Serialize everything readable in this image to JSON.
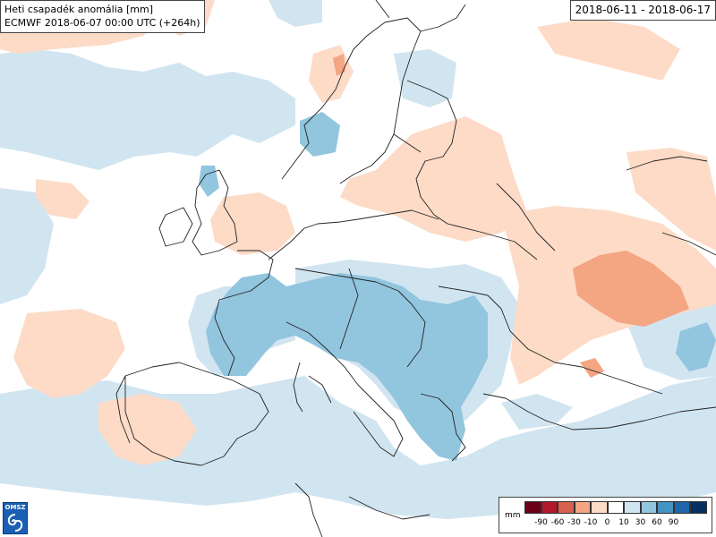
{
  "header": {
    "title": "Heti csapadék anomália [mm]",
    "subtitle": "ECMWF 2018-06-07 00:00 UTC (+264h)",
    "date_range": "2018-06-11 - 2018-06-17"
  },
  "logo": {
    "text": "OMSZ",
    "color": "#1a5fb4"
  },
  "legend": {
    "unit": "mm",
    "colors": [
      "#6b0019",
      "#b2182b",
      "#d6604d",
      "#f4a582",
      "#fddbc7",
      "#ffffff",
      "#d1e5f0",
      "#92c5de",
      "#4393c3",
      "#2166ac",
      "#053061"
    ],
    "ticks": [
      "-90",
      "-60",
      "-30",
      "-10",
      "0",
      "10",
      "30",
      "60",
      "90"
    ]
  },
  "map": {
    "background_color": "#ffffff",
    "dry_anomaly_color": "#fddbc7",
    "strong_dry_color": "#f4a582",
    "wet_anomaly_color": "#d1e5f0",
    "strong_wet_color": "#92c5de"
  }
}
